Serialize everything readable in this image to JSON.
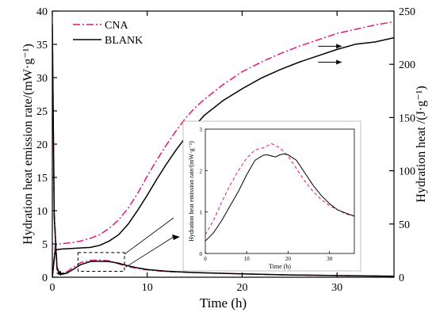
{
  "chart_data": [
    {
      "type": "line",
      "panel": "main",
      "xlabel": "Time (h)",
      "ylabel_left": "Hydration heat emission rate/(mW·g⁻¹)",
      "ylabel_right": "Hydration heat /(J·g⁻¹)",
      "xlim": [
        0,
        36
      ],
      "ylim_left": [
        0,
        40
      ],
      "ylim_right": [
        0,
        250
      ],
      "x_ticks": [
        0,
        10,
        20,
        30
      ],
      "y_ticks_left": [
        0,
        5,
        10,
        15,
        20,
        25,
        30,
        35,
        40
      ],
      "y_ticks_right": [
        0,
        50,
        100,
        150,
        200,
        250
      ],
      "legend_position": "top-left",
      "series": [
        {
          "name": "CNA",
          "axis": "right",
          "quantity": "heat",
          "color": "#e0197d",
          "dash": "dashdot",
          "x": [
            0,
            0.3,
            0.5,
            1,
            2,
            3,
            4,
            5,
            6,
            7,
            8,
            9,
            10,
            11,
            12,
            13,
            14,
            15,
            16,
            18,
            20,
            22,
            24,
            26,
            28,
            30,
            32,
            34,
            36
          ],
          "y": [
            0,
            30,
            31,
            31.5,
            32.5,
            34,
            36.5,
            40,
            46,
            54,
            65,
            79,
            95,
            110,
            124,
            137,
            149,
            159,
            167,
            181,
            193,
            202,
            210,
            217,
            223,
            229,
            233,
            237,
            240
          ]
        },
        {
          "name": "BLANK",
          "axis": "right",
          "quantity": "heat",
          "color": "#000000",
          "dash": "solid",
          "x": [
            0,
            0.3,
            0.5,
            1,
            2,
            3,
            4,
            5,
            6,
            7,
            8,
            9,
            10,
            11,
            12,
            13,
            14,
            15,
            16,
            18,
            20,
            22,
            24,
            26,
            28,
            30,
            32,
            34,
            36
          ],
          "y": [
            0,
            25,
            26,
            26.5,
            27,
            27.5,
            28,
            30,
            34,
            40,
            50,
            63,
            77,
            92,
            106,
            119,
            131,
            142,
            152,
            166,
            177,
            187,
            195,
            202,
            208,
            214,
            219,
            221,
            225
          ]
        },
        {
          "name": "CNA",
          "axis": "left",
          "quantity": "rate",
          "color": "#e0197d",
          "dash": "dashdot",
          "x": [
            0,
            0.2,
            0.5,
            0.8,
            1,
            1.5,
            2,
            3,
            4,
            5,
            6,
            7,
            8,
            9,
            10,
            12,
            15,
            20,
            25,
            30,
            36
          ],
          "y": [
            38,
            10,
            1.5,
            0.6,
            0.55,
            0.8,
            1.3,
            2.2,
            2.55,
            2.6,
            2.45,
            2.0,
            1.6,
            1.3,
            1.1,
            0.85,
            0.7,
            0.5,
            0.35,
            0.25,
            0.15
          ]
        },
        {
          "name": "BLANK",
          "axis": "left",
          "quantity": "rate",
          "color": "#000000",
          "dash": "solid",
          "x": [
            0,
            0.2,
            0.5,
            0.8,
            1,
            1.5,
            2,
            3,
            4,
            5,
            6,
            7,
            8,
            9,
            10,
            12,
            15,
            20,
            25,
            30,
            36
          ],
          "y": [
            38,
            9,
            1.2,
            0.5,
            0.45,
            0.6,
            1.0,
            1.9,
            2.35,
            2.4,
            2.35,
            2.1,
            1.7,
            1.4,
            1.15,
            0.9,
            0.7,
            0.5,
            0.35,
            0.25,
            0.15
          ]
        }
      ]
    },
    {
      "type": "line",
      "panel": "inset",
      "xlabel": "Time (h)",
      "ylabel": "Hydration heat emission rate/(mW·g⁻¹)",
      "xlim": [
        0,
        36
      ],
      "ylim": [
        0,
        3
      ],
      "x_ticks": [
        0,
        10,
        20,
        30
      ],
      "y_ticks": [
        0,
        1,
        2,
        3
      ],
      "series": [
        {
          "name": "CNA",
          "color": "#e0197d",
          "dash": "dashed",
          "x": [
            0,
            2,
            4,
            6,
            8,
            10,
            12,
            14,
            15,
            16,
            18,
            20,
            22,
            24,
            26,
            28,
            30,
            32,
            34,
            36
          ],
          "y": [
            0.45,
            0.8,
            1.25,
            1.65,
            2.0,
            2.3,
            2.5,
            2.55,
            2.6,
            2.65,
            2.55,
            2.35,
            2.05,
            1.75,
            1.5,
            1.3,
            1.15,
            1.05,
            0.95,
            0.9
          ]
        },
        {
          "name": "BLANK",
          "color": "#000000",
          "dash": "solid",
          "x": [
            0,
            2,
            4,
            6,
            8,
            10,
            12,
            14,
            15,
            16,
            17,
            18,
            19,
            20,
            22,
            24,
            26,
            28,
            30,
            32,
            34,
            36
          ],
          "y": [
            0.3,
            0.5,
            0.8,
            1.15,
            1.5,
            1.9,
            2.25,
            2.37,
            2.38,
            2.35,
            2.33,
            2.38,
            2.4,
            2.38,
            2.25,
            1.95,
            1.65,
            1.4,
            1.2,
            1.05,
            0.97,
            0.9
          ]
        }
      ]
    }
  ]
}
